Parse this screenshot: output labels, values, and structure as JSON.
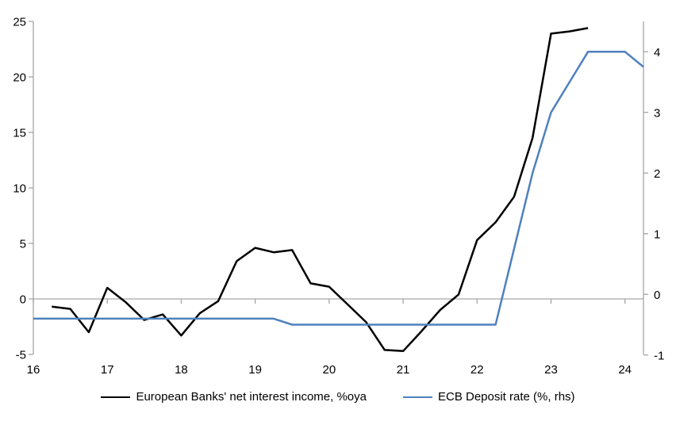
{
  "chart_data": {
    "type": "line",
    "title": "",
    "x_axis": {
      "range": [
        16,
        24.25
      ],
      "ticks": [
        16,
        17,
        18,
        19,
        20,
        21,
        22,
        23,
        24
      ],
      "tick_labels": [
        "16",
        "17",
        "18",
        "19",
        "20",
        "21",
        "22",
        "23",
        "24"
      ]
    },
    "left_axis": {
      "range": [
        -5,
        25
      ],
      "ticks": [
        -5,
        0,
        5,
        10,
        15,
        20,
        25
      ],
      "tick_labels": [
        "-5",
        "0",
        "5",
        "10",
        "15",
        "20",
        "25"
      ]
    },
    "right_axis": {
      "range": [
        -0.99,
        4.5
      ],
      "ticks": [
        -1,
        0,
        1,
        2,
        3,
        4
      ],
      "tick_labels": [
        "-1",
        "0",
        "1",
        "2",
        "3",
        "4"
      ]
    },
    "grid": "horizontal zero line only",
    "legend_position": "bottom center",
    "series": [
      {
        "name": "European Banks' net interest income, %oya",
        "axis": "left",
        "color": "#000000",
        "x": [
          16.25,
          16.5,
          16.75,
          17.0,
          17.25,
          17.5,
          17.75,
          18.0,
          18.25,
          18.5,
          18.75,
          19.0,
          19.25,
          19.5,
          19.75,
          20.0,
          20.25,
          20.5,
          20.75,
          21.0,
          21.25,
          21.5,
          21.75,
          22.0,
          22.25,
          22.5,
          22.75,
          23.0,
          23.25,
          23.5
        ],
        "values": [
          -0.7,
          -0.9,
          -3.0,
          1.0,
          -0.3,
          -1.9,
          -1.4,
          -3.3,
          -1.3,
          -0.2,
          3.4,
          4.6,
          4.2,
          4.4,
          1.4,
          1.1,
          -0.5,
          -2.1,
          -4.6,
          -4.7,
          -2.9,
          -1.0,
          0.4,
          5.3,
          6.9,
          9.2,
          14.5,
          23.9,
          24.1,
          24.4
        ]
      },
      {
        "name": "ECB Deposit rate (%, rhs)",
        "axis": "right",
        "color": "#4F81BD",
        "x": [
          16.0,
          16.25,
          16.5,
          16.75,
          17.0,
          17.25,
          17.5,
          17.75,
          18.0,
          18.25,
          18.5,
          18.75,
          19.0,
          19.25,
          19.5,
          19.75,
          20.0,
          20.25,
          20.5,
          20.75,
          21.0,
          21.25,
          21.5,
          21.75,
          22.0,
          22.25,
          22.5,
          22.75,
          23.0,
          23.25,
          23.5,
          23.75,
          24.0,
          24.25
        ],
        "values": [
          -0.4,
          -0.4,
          -0.4,
          -0.4,
          -0.4,
          -0.4,
          -0.4,
          -0.4,
          -0.4,
          -0.4,
          -0.4,
          -0.4,
          -0.4,
          -0.4,
          -0.5,
          -0.5,
          -0.5,
          -0.5,
          -0.5,
          -0.5,
          -0.5,
          -0.5,
          -0.5,
          -0.5,
          -0.5,
          -0.5,
          0.75,
          2.0,
          3.0,
          3.5,
          4.0,
          4.0,
          4.0,
          3.75
        ]
      }
    ]
  },
  "colors": {
    "background": "#FFFFFF",
    "axis_line": "#A6A6A6",
    "zero_line": "#A6A6A6",
    "text": "#000000",
    "series_nii": "#000000",
    "series_ecb": "#4F81BD"
  }
}
